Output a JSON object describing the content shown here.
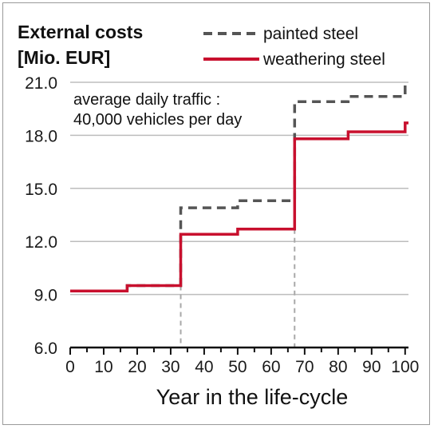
{
  "chart_data": {
    "type": "line",
    "title": "External costs",
    "subtitle": "[Mio. EUR]",
    "xlabel": "Year in the life-cycle",
    "ylabel": "",
    "xlim": [
      0,
      101
    ],
    "ylim": [
      6.0,
      21.0
    ],
    "xticks": [
      0,
      10,
      20,
      30,
      40,
      50,
      60,
      70,
      80,
      90,
      100
    ],
    "yticks": [
      6.0,
      9.0,
      12.0,
      15.0,
      18.0,
      21.0
    ],
    "ytick_labels": [
      "6.0",
      "9.0",
      "12.0",
      "15.0",
      "18.0",
      "21.0"
    ],
    "xtick_labels": [
      "0",
      "10",
      "20",
      "30",
      "40",
      "50",
      "60",
      "70",
      "80",
      "90",
      "100"
    ],
    "grid": "horizontal",
    "legend_position": "top-right",
    "annotation": [
      "average daily traffic :",
      "40,000 vehicles per day"
    ],
    "vertical_markers": [
      33,
      67
    ],
    "series": [
      {
        "name": "painted steel",
        "style": "dashed",
        "color": "#555555",
        "points": [
          [
            0,
            9.2
          ],
          [
            17,
            9.2
          ],
          [
            17,
            9.5
          ],
          [
            33,
            9.5
          ],
          [
            33,
            13.9
          ],
          [
            50,
            13.9
          ],
          [
            50,
            14.3
          ],
          [
            67,
            14.3
          ],
          [
            67,
            19.9
          ],
          [
            83,
            19.9
          ],
          [
            83,
            20.2
          ],
          [
            100,
            20.2
          ],
          [
            100,
            20.9
          ]
        ]
      },
      {
        "name": "weathering steel",
        "style": "solid",
        "color": "#c8102e",
        "points": [
          [
            0,
            9.2
          ],
          [
            17,
            9.2
          ],
          [
            17,
            9.5
          ],
          [
            33,
            9.5
          ],
          [
            33,
            12.4
          ],
          [
            50,
            12.4
          ],
          [
            50,
            12.7
          ],
          [
            67,
            12.7
          ],
          [
            67,
            17.8
          ],
          [
            83,
            17.8
          ],
          [
            83,
            18.2
          ],
          [
            100,
            18.2
          ],
          [
            100,
            18.7
          ],
          [
            101,
            18.7
          ]
        ]
      }
    ]
  }
}
